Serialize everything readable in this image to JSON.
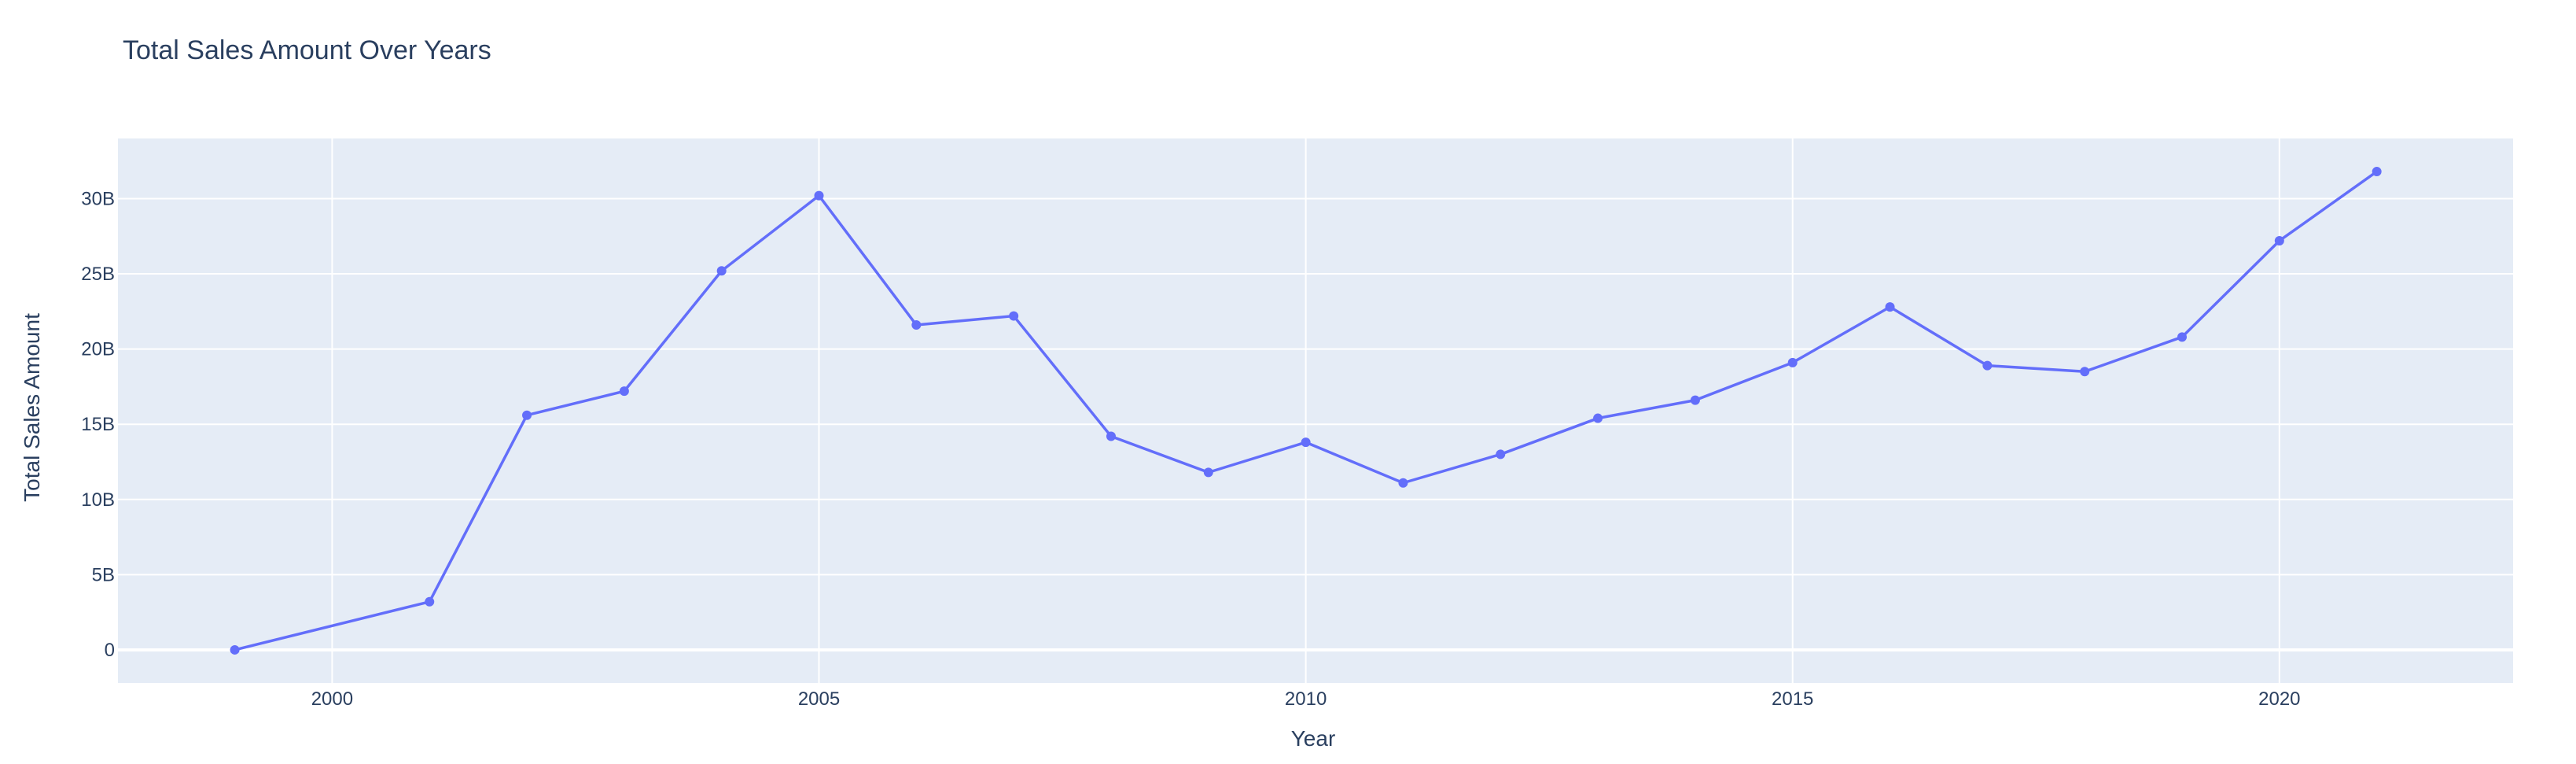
{
  "chart_data": {
    "type": "line",
    "title": "Total Sales Amount Over Years",
    "xlabel": "Year",
    "ylabel": "Total Sales Amount",
    "xlim": [
      1997.8,
      2022.4
    ],
    "ylim": [
      -2.2,
      34.0
    ],
    "y_unit": "billions",
    "grid": true,
    "legend": "none",
    "x_ticks": [
      {
        "value": 2000,
        "label": "2000"
      },
      {
        "value": 2005,
        "label": "2005"
      },
      {
        "value": 2010,
        "label": "2010"
      },
      {
        "value": 2015,
        "label": "2015"
      },
      {
        "value": 2020,
        "label": "2020"
      }
    ],
    "y_ticks": [
      {
        "value": 0,
        "label": "0"
      },
      {
        "value": 5,
        "label": "5B"
      },
      {
        "value": 10,
        "label": "10B"
      },
      {
        "value": 15,
        "label": "15B"
      },
      {
        "value": 20,
        "label": "20B"
      },
      {
        "value": 25,
        "label": "25B"
      },
      {
        "value": 30,
        "label": "30B"
      }
    ],
    "series": [
      {
        "color": "#636efa",
        "x": [
          1999,
          2001,
          2002,
          2003,
          2004,
          2005,
          2006,
          2007,
          2008,
          2009,
          2010,
          2011,
          2012,
          2013,
          2014,
          2015,
          2016,
          2017,
          2018,
          2019,
          2020,
          2021
        ],
        "values": [
          0.0,
          3.2,
          15.6,
          17.2,
          25.2,
          30.2,
          21.6,
          22.2,
          14.2,
          11.8,
          13.8,
          11.1,
          13.0,
          15.4,
          16.6,
          19.1,
          22.8,
          18.9,
          18.5,
          20.8,
          27.2,
          31.8
        ]
      }
    ]
  },
  "colors": {
    "plot_bg": "#e5ecf6",
    "grid": "#ffffff",
    "text": "#2a3f5f",
    "line": "#636efa"
  }
}
